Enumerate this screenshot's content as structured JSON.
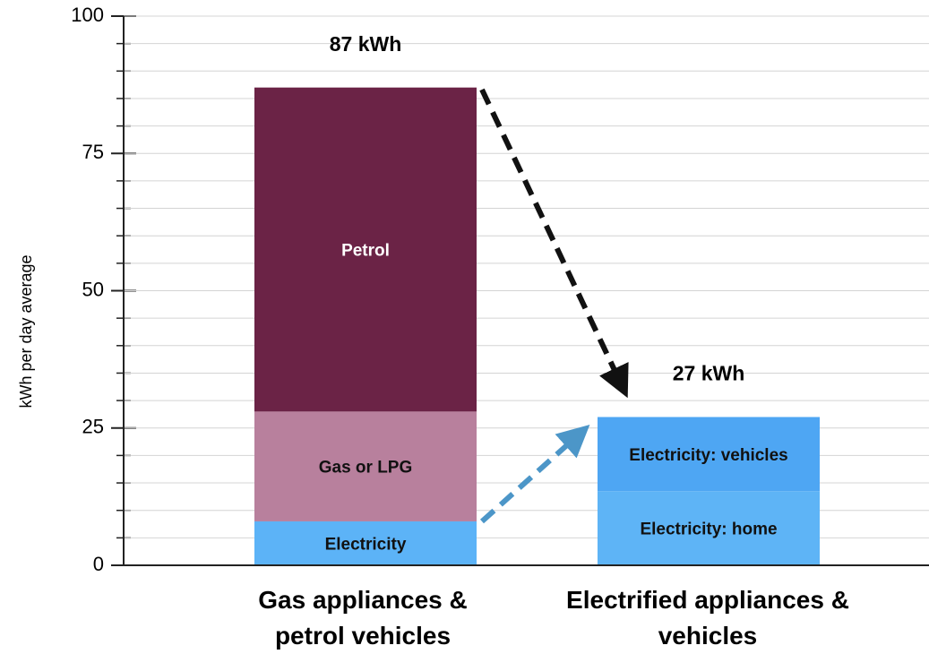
{
  "chart_data": {
    "type": "stacked_bar",
    "ylabel": "kWh per day average",
    "categories": [
      "Gas appliances & petrol vehicles",
      "Electrified appliances & vehicles"
    ],
    "series": [
      {
        "name": "Electricity",
        "color": "#5cb3f7",
        "text_color": "#111111",
        "values": [
          8,
          null
        ]
      },
      {
        "name": "Gas or LPG",
        "color": "#b8809d",
        "text_color": "#111111",
        "values": [
          20,
          null
        ]
      },
      {
        "name": "Petrol",
        "color": "#6b2346",
        "text_color": "#ffffff",
        "values": [
          59,
          null
        ]
      },
      {
        "name": "Electricity: home",
        "color": "#5eb4f6",
        "text_color": "#111111",
        "values": [
          null,
          13.5
        ]
      },
      {
        "name": "Electricity: vehicles",
        "color": "#4ea6f3",
        "text_color": "#111111",
        "values": [
          null,
          13.5
        ]
      }
    ],
    "totals": [
      87,
      27
    ],
    "total_labels": [
      "87 kWh",
      "27 kWh"
    ],
    "ylim": [
      0,
      100
    ],
    "yticks": [
      0,
      25,
      50,
      75,
      100
    ],
    "minor_yticks": [
      5,
      10,
      15,
      20,
      30,
      35,
      40,
      45,
      55,
      60,
      65,
      70,
      80,
      85,
      90,
      95
    ],
    "grid": true
  }
}
